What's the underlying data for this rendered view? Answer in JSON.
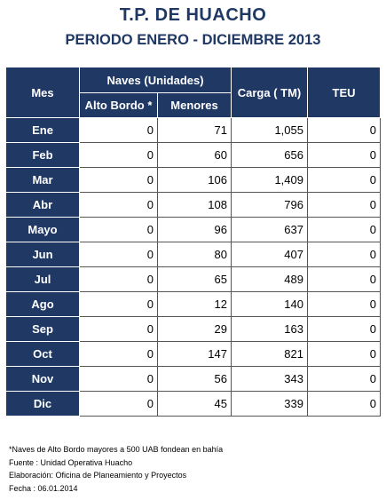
{
  "title": "T.P. DE HUACHO",
  "subtitle": "PERIODO ENERO - DICIEMBRE 2013",
  "table": {
    "headers": {
      "mes": "Mes",
      "naves": "Naves (Unidades)",
      "alto_bordo": "Alto Bordo *",
      "menores": "Menores",
      "carga": "Carga ( TM)",
      "teu": "TEU"
    },
    "rows": [
      {
        "mes": "Ene",
        "alto_bordo": "0",
        "menores": "71",
        "carga": "1,055",
        "teu": "0"
      },
      {
        "mes": "Feb",
        "alto_bordo": "0",
        "menores": "60",
        "carga": "656",
        "teu": "0"
      },
      {
        "mes": "Mar",
        "alto_bordo": "0",
        "menores": "106",
        "carga": "1,409",
        "teu": "0"
      },
      {
        "mes": "Abr",
        "alto_bordo": "0",
        "menores": "108",
        "carga": "796",
        "teu": "0"
      },
      {
        "mes": "Mayo",
        "alto_bordo": "0",
        "menores": "96",
        "carga": "637",
        "teu": "0"
      },
      {
        "mes": "Jun",
        "alto_bordo": "0",
        "menores": "80",
        "carga": "407",
        "teu": "0"
      },
      {
        "mes": "Jul",
        "alto_bordo": "0",
        "menores": "65",
        "carga": "489",
        "teu": "0"
      },
      {
        "mes": "Ago",
        "alto_bordo": "0",
        "menores": "12",
        "carga": "140",
        "teu": "0"
      },
      {
        "mes": "Sep",
        "alto_bordo": "0",
        "menores": "29",
        "carga": "163",
        "teu": "0"
      },
      {
        "mes": "Oct",
        "alto_bordo": "0",
        "menores": "147",
        "carga": "821",
        "teu": "0"
      },
      {
        "mes": "Nov",
        "alto_bordo": "0",
        "menores": "56",
        "carga": "343",
        "teu": "0"
      },
      {
        "mes": "Dic",
        "alto_bordo": "0",
        "menores": "45",
        "carga": "339",
        "teu": "0"
      }
    ]
  },
  "notes": [
    "*Naves de Alto Bordo mayores a 500 UAB fondean en bahía",
    "Fuente : Unidad Operativa Huacho",
    "Elaboración: Oficina de Planeamiento y Proyectos",
    "Fecha : 06.01.2014"
  ],
  "colors": {
    "header_bg": "#1f3864",
    "title_text": "#1f3864"
  }
}
